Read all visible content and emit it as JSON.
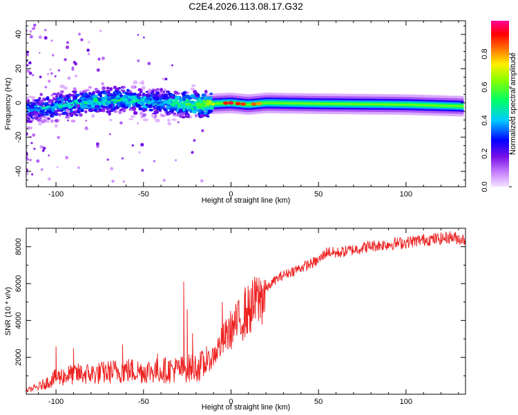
{
  "title": "C2E4.2026.113.08.17.G32",
  "chart_data": [
    {
      "type": "heatmap",
      "xlabel": "Height of straight line (km)",
      "ylabel": "Frequency (Hz)",
      "xlim": [
        -117,
        134
      ],
      "ylim": [
        -49,
        48
      ],
      "xticks": [
        -100,
        -50,
        0,
        50,
        100
      ],
      "yticks": [
        -40,
        -20,
        0,
        20,
        40
      ],
      "colorbar": {
        "label": "Normalized spectral amplitude",
        "range": [
          0,
          1
        ],
        "ticks": [
          0.0,
          0.2,
          0.4,
          0.6,
          0.8
        ],
        "colormap": [
          "#f0d8ff",
          "#a020f0",
          "#0000ff",
          "#00ffff",
          "#00ff00",
          "#ffff00",
          "#ff0000",
          "#ff00a0"
        ]
      },
      "ridge": [
        {
          "x": -115,
          "f": -4.0,
          "a": 0.35
        },
        {
          "x": -100,
          "f": -2.0,
          "a": 0.4
        },
        {
          "x": -80,
          "f": 1.0,
          "a": 0.45
        },
        {
          "x": -60,
          "f": 2.0,
          "a": 0.45
        },
        {
          "x": -40,
          "f": 0.0,
          "a": 0.42
        },
        {
          "x": -20,
          "f": -1.0,
          "a": 0.55
        },
        {
          "x": 0,
          "f": 0.0,
          "a": 0.8
        },
        {
          "x": 10,
          "f": -1.0,
          "a": 0.85
        },
        {
          "x": 20,
          "f": 0.0,
          "a": 0.65
        },
        {
          "x": 50,
          "f": -0.5,
          "a": 0.6
        },
        {
          "x": 100,
          "f": -1.0,
          "a": 0.58
        },
        {
          "x": 134,
          "f": -2.0,
          "a": 0.55
        }
      ]
    },
    {
      "type": "line",
      "xlabel": "Height of straight line (km)",
      "ylabel": "SNR (10 * v/v)",
      "xlim": [
        -117,
        134
      ],
      "ylim": [
        0,
        9000
      ],
      "xticks": [
        -100,
        -50,
        0,
        50,
        100
      ],
      "yticks": [
        2000,
        4000,
        6000,
        8000
      ],
      "series": [
        {
          "color": "#ee2222",
          "envelope_x": [
            -117,
            -110,
            -100,
            -90,
            -80,
            -70,
            -60,
            -50,
            -40,
            -30,
            -25,
            -20,
            -15,
            -10,
            -5,
            0,
            5,
            10,
            15,
            20,
            25,
            30,
            40,
            50,
            55,
            60,
            70,
            80,
            90,
            100,
            110,
            120,
            125,
            134
          ],
          "envelope_y": [
            200,
            400,
            900,
            1100,
            1100,
            1200,
            1300,
            1250,
            1300,
            1350,
            1400,
            1450,
            1600,
            2200,
            3000,
            3700,
            4200,
            4800,
            5300,
            5800,
            6300,
            6600,
            7000,
            7400,
            7900,
            7800,
            8000,
            8200,
            8300,
            8400,
            8550,
            8600,
            8700,
            8550
          ],
          "spikes": [
            {
              "x": -100,
              "y": 2600
            },
            {
              "x": -90,
              "y": 2500
            },
            {
              "x": -62,
              "y": 2700
            },
            {
              "x": -42,
              "y": 2200
            },
            {
              "x": -27,
              "y": 6100
            },
            {
              "x": -25,
              "y": 4600
            },
            {
              "x": -22,
              "y": 3300
            },
            {
              "x": -14,
              "y": 2600
            },
            {
              "x": -5,
              "y": 5000
            },
            {
              "x": 8,
              "y": 5800
            },
            {
              "x": 14,
              "y": 6100
            },
            {
              "x": 19,
              "y": 6200
            }
          ]
        }
      ]
    }
  ]
}
